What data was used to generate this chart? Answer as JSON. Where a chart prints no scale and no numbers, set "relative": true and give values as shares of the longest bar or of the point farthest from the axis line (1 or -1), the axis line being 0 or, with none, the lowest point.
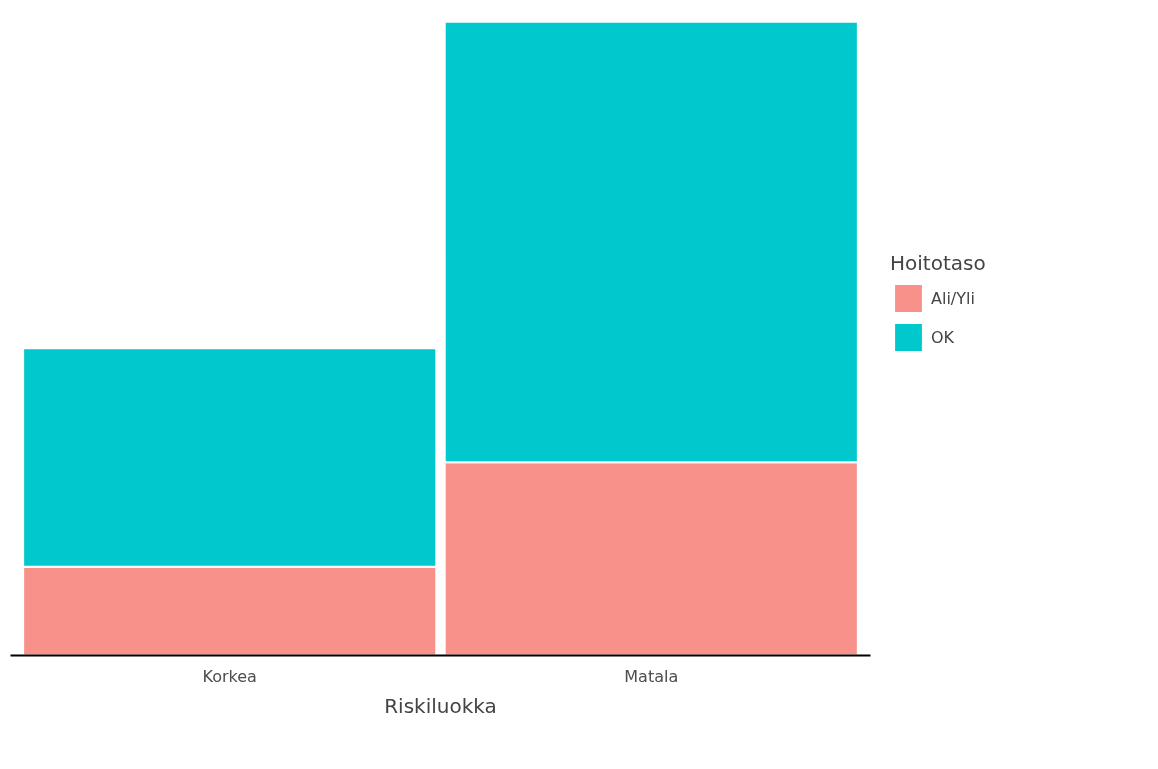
{
  "chart_data": {
    "type": "bar",
    "stacked": true,
    "relative": true,
    "xlabel": "Riskiluokka",
    "legend_title": "Hoitotaso",
    "legend": "right",
    "categories": [
      "Korkea",
      "Matala"
    ],
    "series": [
      {
        "name": "Ali/Yli",
        "color": "#f8918a",
        "values": [
          0.14,
          0.305
        ]
      },
      {
        "name": "OK",
        "color": "#00c8cc",
        "values": [
          0.345,
          0.695
        ]
      }
    ]
  }
}
